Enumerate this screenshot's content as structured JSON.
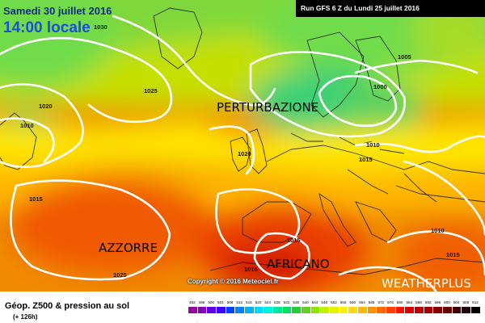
{
  "header": {
    "date_title": "Samedi 30 juillet 2016",
    "time_title": "14:00 locale",
    "run_info": "Run GFS 6 Z du Lundi 25 juillet 2016"
  },
  "copyright": "Copyright © 2016 Meteociel.fr",
  "regions": {
    "perturbazione": "PERTURBAZIONE",
    "azzorre": "AZZORRE",
    "africano": "AFRICANO",
    "watermark": "WEATHERPLUS"
  },
  "isobars": [
    {
      "id": "isobar-label-1030",
      "value": "1030"
    },
    {
      "id": "isobar-label-1025-north",
      "value": "1025"
    },
    {
      "id": "isobar-label-1020-west",
      "value": "1020"
    },
    {
      "id": "isobar-label-1010-west",
      "value": "1010"
    },
    {
      "id": "isobar-label-1015-west",
      "value": "1015"
    },
    {
      "id": "isobar-label-1020-center",
      "value": "1020"
    },
    {
      "id": "isobar-label-1005",
      "value": "1005"
    },
    {
      "id": "isobar-label-1000",
      "value": "1000"
    },
    {
      "id": "isobar-label-1010-east",
      "value": "1010"
    },
    {
      "id": "isobar-label-1015-east",
      "value": "1015"
    },
    {
      "id": "isobar-label-1025-south",
      "value": "1025"
    },
    {
      "id": "isobar-label-1015-spain",
      "value": "1015"
    },
    {
      "id": "isobar-label-1015-africa",
      "value": "1015"
    },
    {
      "id": "isobar-label-1010-med",
      "value": "1010"
    },
    {
      "id": "isobar-label-1015-se",
      "value": "1015"
    }
  ],
  "legend": {
    "title": "Géop. Z500 & pression au sol",
    "subtitle": "(+ 126h)",
    "ticks": [
      "492",
      "496",
      "500",
      "504",
      "508",
      "512",
      "516",
      "520",
      "524",
      "528",
      "532",
      "536",
      "540",
      "544",
      "548",
      "552",
      "556",
      "560",
      "564",
      "568",
      "572",
      "576",
      "580",
      "584",
      "588",
      "592",
      "596",
      "600",
      "604",
      "608",
      "612"
    ],
    "colors": [
      "#a000a0",
      "#8a00c0",
      "#6000e0",
      "#3000ff",
      "#0040ff",
      "#0080ff",
      "#00b0ff",
      "#00d8ff",
      "#00f0e0",
      "#00e8a0",
      "#00e060",
      "#20d030",
      "#60d020",
      "#90e000",
      "#c0f000",
      "#e8f000",
      "#fff000",
      "#ffd800",
      "#ffb800",
      "#ff9000",
      "#ff6800",
      "#ff4000",
      "#f01800",
      "#d80000",
      "#c00000",
      "#a00000",
      "#800000",
      "#600000",
      "#400000",
      "#200000",
      "#000000"
    ]
  },
  "colors": {
    "date_title": "#0f2a87",
    "time_title": "#1a4fd8",
    "run_box": "#000000",
    "isobar": "#ffffff"
  }
}
